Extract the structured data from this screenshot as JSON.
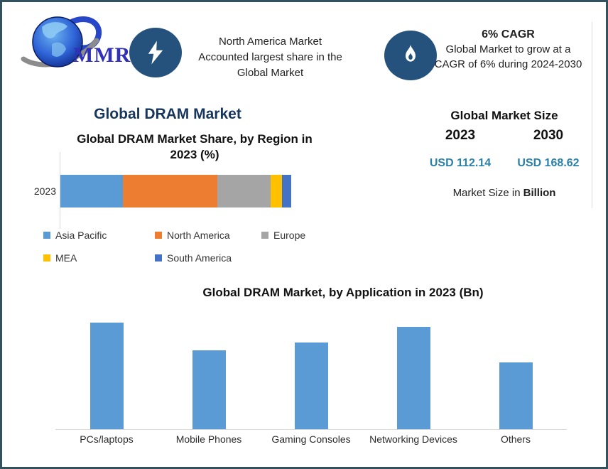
{
  "window": {
    "background": "#FFFFFF",
    "border_color": "#32535E"
  },
  "logo": {
    "text": "MMR",
    "icon": "globe-swoosh-logo",
    "text_color": "#3030B8"
  },
  "header": {
    "share_badge": {
      "icon": "lightning-bolt-icon",
      "color": "#25517D"
    },
    "share_note_lines": [
      "North America Market",
      "Accounted largest share in the",
      "Global Market"
    ],
    "cagr_badge": {
      "icon": "flame-icon",
      "color": "#25517D"
    },
    "cagr_headline": "6% CAGR",
    "cagr_note_lines": [
      "Global Market to grow at a",
      "CAGR of 6% during 2024-2030"
    ]
  },
  "main_title": "Global DRAM Market",
  "market_size_panel": {
    "title": "Global Market Size",
    "years": [
      "2023",
      "2030"
    ],
    "values": [
      "USD 112.14",
      "USD 168.62"
    ],
    "value_color": "#2980A9",
    "footnote_prefix": "Market Size in",
    "footnote_bold": "Billion"
  },
  "chart_data": [
    {
      "type": "bar",
      "subtype": "horizontal-stacked",
      "title": "Global DRAM Market Share, by Region in 2023 (%)",
      "title_lines": [
        "Global DRAM Market Share, by Region in",
        "2023 (%)"
      ],
      "categories": [
        "2023"
      ],
      "unit": "%",
      "xlim": [
        0,
        100
      ],
      "legend_position": "bottom",
      "series": [
        {
          "name": "Asia Pacific",
          "value": 27,
          "color": "#5B9BD5"
        },
        {
          "name": "North America",
          "value": 41,
          "color": "#ED7D31"
        },
        {
          "name": "Europe",
          "value": 23,
          "color": "#A5A5A5"
        },
        {
          "name": "MEA",
          "value": 5,
          "color": "#FFC000"
        },
        {
          "name": "South America",
          "value": 4,
          "color": "#4472C4"
        }
      ]
    },
    {
      "type": "bar",
      "title": "Global DRAM Market, by Application in 2023 (Bn)",
      "categories": [
        "PCs/laptops",
        "Mobile Phones",
        "Gaming Consoles",
        "Networking Devices",
        "Others"
      ],
      "values": [
        27,
        20,
        22,
        26,
        17
      ],
      "unit": "Bn",
      "bar_color": "#5B9BD5",
      "xlabel": "",
      "ylabel": "",
      "grid": false,
      "axis_line_color": "#D9D9D9"
    }
  ]
}
